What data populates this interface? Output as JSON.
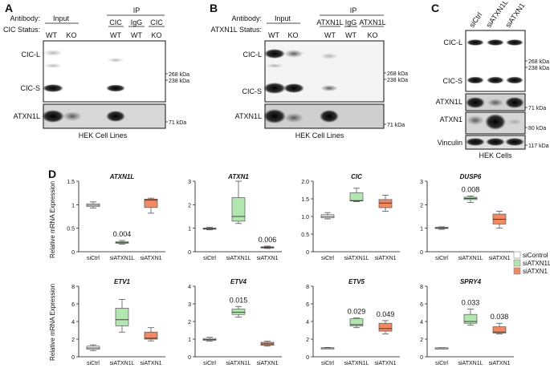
{
  "panel_A": {
    "letter": "A",
    "antibody_label": "Antibody:",
    "status_label": "CIC Status:",
    "groups": [
      "Input",
      "IP"
    ],
    "antibody_cols": [
      "CIC",
      "IgG",
      "CIC"
    ],
    "status_cols": [
      "WT",
      "KO",
      "WT",
      "WT",
      "KO"
    ],
    "bands": [
      "CIC-L",
      "CIC-S",
      "ATXN1L"
    ],
    "kda": [
      "268 kDa",
      "238 kDa",
      "71 kDa"
    ],
    "caption": "HEK Cell Lines"
  },
  "panel_B": {
    "letter": "B",
    "antibody_label": "Antibody:",
    "status_label": "ATXN1L Status:",
    "groups": [
      "Input",
      "IP"
    ],
    "antibody_cols": [
      "ATXN1L",
      "IgG",
      "ATXN1L"
    ],
    "status_cols": [
      "WT",
      "KO",
      "WT",
      "WT",
      "KO"
    ],
    "bands": [
      "CIC-L",
      "CIC-S",
      "ATXN1L"
    ],
    "kda": [
      "268 kDa",
      "238 kDa",
      "71 kDa"
    ],
    "caption": "HEK Cell Lines"
  },
  "panel_C": {
    "letter": "C",
    "lanes": [
      "siCtrl",
      "siATXN1L",
      "siATXN1"
    ],
    "bands": [
      "CIC-L",
      "CIC-S",
      "ATXN1L",
      "ATXN1",
      "Vinculin"
    ],
    "kda": [
      "268 kDa",
      "238 kDa",
      "71 kDa",
      "80 kDa",
      "117 kDa"
    ],
    "caption": "HEK Cells"
  },
  "panel_D": {
    "letter": "D",
    "ylabel": "Relative mRNA Expression",
    "legend": [
      {
        "label": "siControl",
        "color": "#ffffff"
      },
      {
        "label": "siATXN1L",
        "color": "#b2e6b0"
      },
      {
        "label": "siATXN1",
        "color": "#f08a64"
      }
    ],
    "chart_data": [
      {
        "type": "box",
        "title": "ATXN1L",
        "categories": [
          "siCtrl",
          "siATXN1L",
          "siATXN1"
        ],
        "ylim": [
          0,
          1.5
        ],
        "ticks": [
          "0",
          "0.5",
          "1",
          "1.5"
        ],
        "boxes": [
          {
            "min": 0.93,
            "q1": 0.96,
            "median": 0.99,
            "q3": 1.02,
            "max": 1.06
          },
          {
            "min": 0.16,
            "q1": 0.18,
            "median": 0.2,
            "q3": 0.21,
            "max": 0.24
          },
          {
            "min": 0.82,
            "q1": 0.94,
            "median": 1.1,
            "q3": 1.12,
            "max": 1.14
          }
        ],
        "annotations": [
          "",
          "0.004",
          ""
        ]
      },
      {
        "type": "box",
        "title": "ATXN1",
        "categories": [
          "siCtrl",
          "siATXN1L",
          "siATXN1"
        ],
        "ylim": [
          0,
          3
        ],
        "ticks": [
          "0",
          "1",
          "2",
          "3"
        ],
        "boxes": [
          {
            "min": 0.93,
            "q1": 0.96,
            "median": 0.98,
            "q3": 1.01,
            "max": 1.04
          },
          {
            "min": 1.2,
            "q1": 1.3,
            "median": 1.5,
            "q3": 2.3,
            "max": 3.0
          },
          {
            "min": 0.14,
            "q1": 0.16,
            "median": 0.18,
            "q3": 0.21,
            "max": 0.24
          }
        ],
        "annotations": [
          "",
          "",
          "0.006"
        ]
      },
      {
        "type": "box",
        "title": "CIC",
        "categories": [
          "siCtrl",
          "siATXN1L",
          "siATXN1"
        ],
        "ylim": [
          0,
          2.0
        ],
        "ticks": [
          "0",
          "0.5",
          "1.0",
          "1.5",
          "2.0"
        ],
        "boxes": [
          {
            "min": 0.93,
            "q1": 0.96,
            "median": 1.0,
            "q3": 1.05,
            "max": 1.11
          },
          {
            "min": 1.42,
            "q1": 1.44,
            "median": 1.45,
            "q3": 1.67,
            "max": 1.8
          },
          {
            "min": 1.15,
            "q1": 1.25,
            "median": 1.38,
            "q3": 1.48,
            "max": 1.6
          }
        ],
        "annotations": [
          "",
          "",
          ""
        ]
      },
      {
        "type": "box",
        "title": "DUSP6",
        "categories": [
          "siCtrl",
          "siATXN1L",
          "siATXN1"
        ],
        "ylim": [
          0,
          3
        ],
        "ticks": [
          "0",
          "1",
          "2",
          "3"
        ],
        "boxes": [
          {
            "min": 0.95,
            "q1": 0.99,
            "median": 1.01,
            "q3": 1.04,
            "max": 1.06
          },
          {
            "min": 2.1,
            "q1": 2.22,
            "median": 2.27,
            "q3": 2.32,
            "max": 2.37
          },
          {
            "min": 1.0,
            "q1": 1.18,
            "median": 1.38,
            "q3": 1.6,
            "max": 1.72
          }
        ],
        "annotations": [
          "",
          "0.008",
          ""
        ]
      },
      {
        "type": "box",
        "title": "ETV1",
        "categories": [
          "siCtrl",
          "siATXN1L",
          "siATXN1"
        ],
        "ylim": [
          0,
          8
        ],
        "ticks": [
          "0",
          "2",
          "4",
          "6",
          "8"
        ],
        "boxes": [
          {
            "min": 0.7,
            "q1": 0.85,
            "median": 1.0,
            "q3": 1.2,
            "max": 1.35
          },
          {
            "min": 2.8,
            "q1": 3.5,
            "median": 4.2,
            "q3": 5.5,
            "max": 6.5
          },
          {
            "min": 1.8,
            "q1": 2.0,
            "median": 2.1,
            "q3": 2.8,
            "max": 3.3
          }
        ],
        "annotations": [
          "",
          "",
          ""
        ]
      },
      {
        "type": "box",
        "title": "ETV4",
        "categories": [
          "siCtrl",
          "siATXN1L",
          "siATXN1"
        ],
        "ylim": [
          0,
          4
        ],
        "ticks": [
          "0",
          "1",
          "2",
          "3",
          "4"
        ],
        "boxes": [
          {
            "min": 0.88,
            "q1": 0.93,
            "median": 0.98,
            "q3": 1.04,
            "max": 1.1
          },
          {
            "min": 2.25,
            "q1": 2.4,
            "median": 2.53,
            "q3": 2.7,
            "max": 2.85
          },
          {
            "min": 0.6,
            "q1": 0.65,
            "median": 0.73,
            "q3": 0.82,
            "max": 0.88
          }
        ],
        "annotations": [
          "",
          "0.015",
          ""
        ]
      },
      {
        "type": "box",
        "title": "ETV5",
        "categories": [
          "siCtrl",
          "siATXN1L",
          "siATXN1"
        ],
        "ylim": [
          0,
          8
        ],
        "ticks": [
          "0",
          "2",
          "4",
          "6",
          "8"
        ],
        "boxes": [
          {
            "min": 0.95,
            "q1": 0.98,
            "median": 1.0,
            "q3": 1.02,
            "max": 1.05
          },
          {
            "min": 3.3,
            "q1": 3.5,
            "median": 3.65,
            "q3": 4.3,
            "max": 4.4
          },
          {
            "min": 2.6,
            "q1": 2.9,
            "median": 3.2,
            "q3": 3.8,
            "max": 4.1
          }
        ],
        "annotations": [
          "",
          "0.029",
          "0.049"
        ]
      },
      {
        "type": "box",
        "title": "SPRY4",
        "categories": [
          "siCtrl",
          "siATXN1L",
          "siATXN1"
        ],
        "ylim": [
          0,
          8
        ],
        "ticks": [
          "0",
          "2",
          "4",
          "6",
          "8"
        ],
        "boxes": [
          {
            "min": 0.97,
            "q1": 0.99,
            "median": 1.0,
            "q3": 1.01,
            "max": 1.03
          },
          {
            "min": 3.6,
            "q1": 3.8,
            "median": 4.0,
            "q3": 4.8,
            "max": 5.4
          },
          {
            "min": 2.6,
            "q1": 2.7,
            "median": 2.8,
            "q3": 3.4,
            "max": 3.8
          }
        ],
        "annotations": [
          "",
          "0.033",
          "0.038"
        ]
      }
    ]
  }
}
